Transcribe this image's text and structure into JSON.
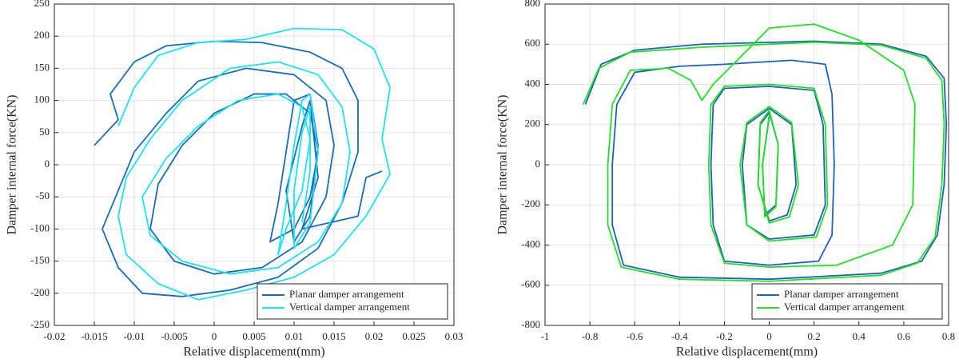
{
  "chart_data": [
    {
      "type": "line",
      "xlabel": "Relative displacement(mm)",
      "ylabel": "Damper internal force(KN)",
      "xlim": [
        -0.02,
        0.03
      ],
      "xticks": [
        -0.02,
        -0.015,
        -0.01,
        -0.005,
        0,
        0.005,
        0.01,
        0.015,
        0.02,
        0.025,
        0.03
      ],
      "ylim": [
        -250,
        250
      ],
      "yticks": [
        -250,
        -200,
        -150,
        -100,
        -50,
        0,
        50,
        100,
        150,
        200,
        250
      ],
      "grid": true,
      "legend": "lower right",
      "series": [
        {
          "name": "Planar damper arrangement",
          "color": "#1a6db5",
          "x": [
            -0.015,
            -0.012,
            -0.013,
            -0.01,
            -0.006,
            0.0,
            0.006,
            0.012,
            0.016,
            0.018,
            0.018,
            0.016,
            0.013,
            0.008,
            0.002,
            -0.004,
            -0.009,
            -0.012,
            -0.014,
            -0.012,
            -0.01,
            -0.006,
            -0.002,
            0.004,
            0.01,
            0.014,
            0.015,
            0.014,
            0.011,
            0.006,
            0.0,
            -0.005,
            -0.008,
            -0.007,
            -0.004,
            0.0,
            0.005,
            0.009,
            0.012,
            0.013,
            0.012,
            0.01,
            0.007,
            0.008,
            0.009,
            0.01,
            0.012,
            0.013,
            0.012,
            0.01,
            0.009,
            0.011,
            0.012,
            0.013,
            0.011,
            0.018,
            0.019,
            0.021
          ],
          "values": [
            30,
            70,
            110,
            160,
            185,
            192,
            190,
            175,
            150,
            100,
            20,
            -60,
            -130,
            -175,
            -195,
            -205,
            -200,
            -160,
            -100,
            -40,
            20,
            80,
            130,
            150,
            140,
            100,
            30,
            -50,
            -120,
            -160,
            -170,
            -150,
            -100,
            -30,
            30,
            80,
            110,
            110,
            80,
            20,
            -50,
            -100,
            -120,
            -60,
            20,
            100,
            110,
            30,
            -80,
            -120,
            -40,
            60,
            100,
            -20,
            -100,
            -80,
            -20,
            -10
          ]
        },
        {
          "name": "Vertical damper arrangement",
          "color": "#1de3f0",
          "x": [
            -0.012,
            -0.01,
            -0.007,
            -0.002,
            0.004,
            0.01,
            0.016,
            0.02,
            0.022,
            0.021,
            0.022,
            0.019,
            0.015,
            0.01,
            0.004,
            -0.002,
            -0.007,
            -0.011,
            -0.012,
            -0.011,
            -0.008,
            -0.004,
            0.002,
            0.008,
            0.013,
            0.016,
            0.017,
            0.016,
            0.013,
            0.008,
            0.002,
            -0.004,
            -0.008,
            -0.009,
            -0.006,
            -0.002,
            0.003,
            0.008,
            0.011,
            0.012,
            0.011,
            0.009,
            0.008,
            0.009,
            0.01,
            0.011,
            0.012,
            0.013,
            0.012,
            0.01,
            0.01,
            0.011,
            0.012,
            0.012,
            0.011
          ],
          "values": [
            60,
            120,
            170,
            190,
            195,
            212,
            210,
            180,
            120,
            40,
            -15,
            -80,
            -140,
            -175,
            -195,
            -210,
            -185,
            -140,
            -80,
            -20,
            40,
            100,
            150,
            160,
            140,
            90,
            20,
            -60,
            -120,
            -160,
            -170,
            -150,
            -110,
            -50,
            10,
            60,
            100,
            110,
            90,
            40,
            -40,
            -100,
            -140,
            -60,
            30,
            100,
            110,
            20,
            -90,
            -130,
            -40,
            50,
            90,
            -10,
            -90
          ]
        }
      ]
    },
    {
      "type": "line",
      "xlabel": "Relative displacement(mm)",
      "ylabel": "Damper internal force(KN)",
      "xlim": [
        -1,
        0.8
      ],
      "xticks": [
        -1,
        -0.8,
        -0.6,
        -0.4,
        -0.2,
        0,
        0.2,
        0.4,
        0.6,
        0.8
      ],
      "ylim": [
        -800,
        800
      ],
      "yticks": [
        -800,
        -600,
        -400,
        -200,
        0,
        200,
        400,
        600,
        800
      ],
      "grid": true,
      "legend": "lower right",
      "series": [
        {
          "name": "Planar damper arrangement",
          "color": "#1f5fbf",
          "x": [
            -0.82,
            -0.75,
            -0.6,
            -0.3,
            0.2,
            0.5,
            0.7,
            0.78,
            0.79,
            0.78,
            0.75,
            0.68,
            0.5,
            0.0,
            -0.4,
            -0.65,
            -0.7,
            -0.7,
            -0.68,
            -0.6,
            -0.4,
            -0.2,
            0.1,
            0.25,
            0.28,
            0.29,
            0.28,
            0.22,
            0.0,
            -0.2,
            -0.25,
            -0.26,
            -0.25,
            -0.2,
            0.0,
            0.2,
            0.24,
            0.25,
            0.2,
            0.0,
            -0.1,
            -0.12,
            -0.1,
            0.0,
            0.1,
            0.12,
            0.08,
            0.0,
            -0.05,
            -0.04,
            0.0,
            0.04,
            0.03,
            -0.02,
            -0.03,
            0.0
          ],
          "values": [
            300,
            500,
            570,
            600,
            615,
            600,
            540,
            430,
            200,
            -100,
            -350,
            -480,
            -540,
            -570,
            -560,
            -500,
            -300,
            0,
            300,
            460,
            490,
            500,
            520,
            500,
            350,
            0,
            -350,
            -480,
            -500,
            -480,
            -300,
            0,
            300,
            380,
            390,
            370,
            200,
            -200,
            -350,
            -370,
            -300,
            0,
            200,
            280,
            200,
            -100,
            -250,
            -280,
            -100,
            200,
            260,
            100,
            -200,
            -250,
            0,
            240
          ]
        },
        {
          "name": "Vertical damper arrangement",
          "color": "#22e022",
          "x": [
            -0.83,
            -0.76,
            -0.62,
            -0.3,
            0.2,
            0.5,
            0.7,
            0.77,
            0.78,
            0.77,
            0.74,
            0.66,
            0.5,
            0.0,
            -0.4,
            -0.66,
            -0.72,
            -0.72,
            -0.7,
            -0.62,
            -0.45,
            -0.35,
            -0.3,
            -0.25,
            0.0,
            0.2,
            0.4,
            0.6,
            0.65,
            0.64,
            0.55,
            0.3,
            0.0,
            -0.2,
            -0.26,
            -0.27,
            -0.26,
            -0.2,
            0.0,
            0.2,
            0.25,
            0.26,
            0.21,
            0.0,
            -0.1,
            -0.13,
            -0.1,
            0.0,
            0.1,
            0.13,
            0.09,
            0.0,
            -0.05,
            -0.04,
            0.0,
            0.04,
            0.03,
            -0.02,
            -0.03,
            0.0
          ],
          "values": [
            300,
            480,
            560,
            585,
            610,
            595,
            530,
            420,
            200,
            -100,
            -360,
            -490,
            -550,
            -580,
            -570,
            -510,
            -300,
            0,
            300,
            470,
            480,
            420,
            320,
            400,
            680,
            700,
            620,
            470,
            300,
            -200,
            -400,
            -500,
            -510,
            -490,
            -300,
            0,
            300,
            390,
            400,
            380,
            200,
            -200,
            -360,
            -380,
            -300,
            0,
            210,
            290,
            210,
            -100,
            -260,
            -290,
            -100,
            210,
            270,
            100,
            -210,
            -260,
            0,
            250
          ]
        }
      ]
    }
  ]
}
